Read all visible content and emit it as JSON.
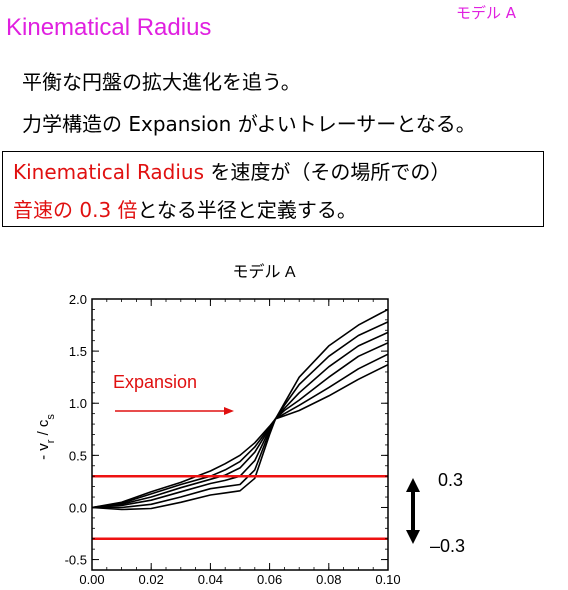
{
  "slide": {
    "title": "Kinematical Radius",
    "model_tag": "モデル A",
    "line1": "平衡な円盤の拡大進化を追う。",
    "line2": "力学構造の Expansion がよいトレーサーとなる。",
    "definition": {
      "term": "Kinematical Radius",
      "after_term": " を速度が（その場所での）",
      "red_part": "音速の 0.3 倍",
      "ending": "となる半径と定義する。"
    },
    "colors": {
      "title": "#e020e0",
      "highlight": "#e01010",
      "threshold": "#ee1111"
    }
  },
  "chart_data": {
    "type": "line",
    "title": "モデル A",
    "ylabel": "- v_r / c_s",
    "xlabel": "",
    "xlim": [
      0.0,
      0.1
    ],
    "ylim": [
      -0.6,
      2.0
    ],
    "x_ticks": [
      "0.00",
      "0.02",
      "0.04",
      "0.06",
      "0.08",
      "0.10"
    ],
    "y_ticks": [
      "-0.5",
      "0.0",
      "0.5",
      "1.0",
      "1.5",
      "2.0"
    ],
    "grid": false,
    "series": [
      {
        "x": [
          0.0,
          0.01,
          0.02,
          0.03,
          0.04,
          0.045,
          0.05,
          0.055,
          0.06,
          0.062,
          0.065,
          0.07,
          0.08,
          0.09,
          0.1
        ],
        "y": [
          0.0,
          0.05,
          0.15,
          0.24,
          0.35,
          0.42,
          0.5,
          0.62,
          0.78,
          0.85,
          1.0,
          1.25,
          1.55,
          1.75,
          1.9
        ]
      },
      {
        "x": [
          0.0,
          0.01,
          0.02,
          0.03,
          0.04,
          0.045,
          0.05,
          0.055,
          0.06,
          0.062,
          0.065,
          0.07,
          0.08,
          0.09,
          0.1
        ],
        "y": [
          0.0,
          0.04,
          0.13,
          0.22,
          0.3,
          0.36,
          0.44,
          0.58,
          0.77,
          0.85,
          0.98,
          1.18,
          1.45,
          1.65,
          1.78
        ]
      },
      {
        "x": [
          0.0,
          0.01,
          0.02,
          0.03,
          0.04,
          0.045,
          0.05,
          0.055,
          0.06,
          0.062,
          0.065,
          0.07,
          0.08,
          0.09,
          0.1
        ],
        "y": [
          0.0,
          0.03,
          0.1,
          0.19,
          0.27,
          0.31,
          0.38,
          0.53,
          0.76,
          0.85,
          0.95,
          1.1,
          1.35,
          1.55,
          1.68
        ]
      },
      {
        "x": [
          0.0,
          0.01,
          0.02,
          0.03,
          0.04,
          0.045,
          0.05,
          0.055,
          0.06,
          0.062,
          0.065,
          0.07,
          0.08,
          0.09,
          0.1
        ],
        "y": [
          0.0,
          0.02,
          0.07,
          0.15,
          0.23,
          0.26,
          0.3,
          0.45,
          0.75,
          0.85,
          0.93,
          1.03,
          1.25,
          1.45,
          1.58
        ]
      },
      {
        "x": [
          0.0,
          0.01,
          0.02,
          0.03,
          0.04,
          0.045,
          0.05,
          0.055,
          0.06,
          0.062,
          0.065,
          0.07,
          0.08,
          0.09,
          0.1
        ],
        "y": [
          0.0,
          0.0,
          0.03,
          0.1,
          0.18,
          0.2,
          0.22,
          0.36,
          0.73,
          0.85,
          0.9,
          0.98,
          1.15,
          1.33,
          1.47
        ]
      },
      {
        "x": [
          0.0,
          0.01,
          0.02,
          0.03,
          0.04,
          0.045,
          0.05,
          0.055,
          0.06,
          0.062,
          0.065,
          0.07,
          0.08,
          0.09,
          0.1
        ],
        "y": [
          0.0,
          -0.02,
          -0.01,
          0.05,
          0.12,
          0.14,
          0.16,
          0.28,
          0.7,
          0.85,
          0.88,
          0.93,
          1.07,
          1.23,
          1.37
        ]
      }
    ],
    "thresholds": [
      0.3,
      -0.3
    ],
    "annotations": {
      "expansion_label": "Expansion",
      "upper_threshold_label": "0.3",
      "lower_threshold_label": "–0.3"
    }
  }
}
